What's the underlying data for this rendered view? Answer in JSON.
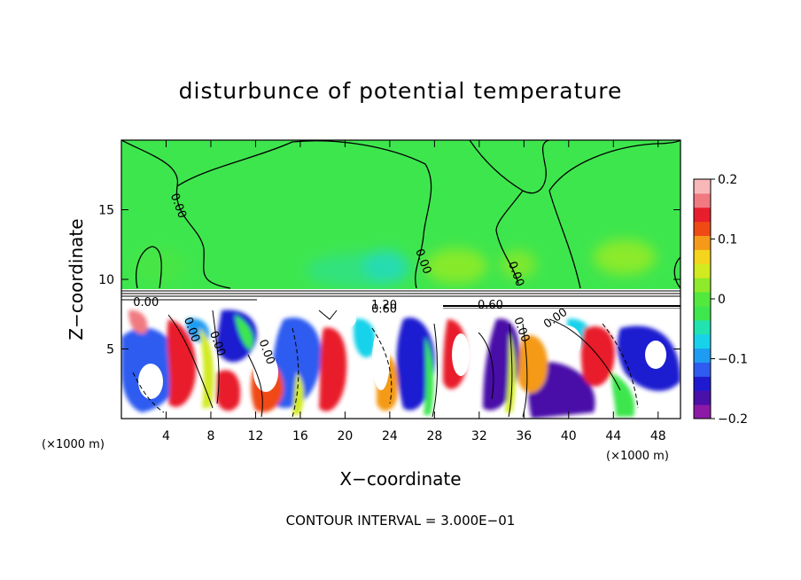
{
  "chart_data": {
    "type": "heatmap",
    "title": "disturbunce of potential temperature",
    "xlabel": "X−coordinate",
    "ylabel": "Z−coordinate",
    "x_unit": "(×1000 m)",
    "y_unit": "(×1000 m)",
    "xlim": [
      0,
      50
    ],
    "ylim": [
      0,
      20
    ],
    "x_ticks": [
      4,
      8,
      12,
      16,
      20,
      24,
      28,
      32,
      36,
      40,
      44,
      48
    ],
    "y_ticks": [
      5,
      10,
      15
    ],
    "colorbar": {
      "min": -0.2,
      "max": 0.2,
      "ticks": [
        {
          "value": 0.2,
          "label": "0.2"
        },
        {
          "value": 0.1,
          "label": "0.1"
        },
        {
          "value": 0.0,
          "label": "0"
        },
        {
          "value": -0.1,
          "label": "−0.1"
        },
        {
          "value": -0.2,
          "label": "−0.2"
        }
      ],
      "colors": [
        "#8c1aa6",
        "#4a10a8",
        "#1f1ad0",
        "#2e5cf0",
        "#1e9cf2",
        "#18d2ea",
        "#22e2b0",
        "#3ee64e",
        "#52e83e",
        "#8eea2a",
        "#d2ea20",
        "#f4d41c",
        "#f49a18",
        "#f04a14",
        "#e81e2c",
        "#f07a80",
        "#f8b8b8"
      ]
    },
    "upper_layer": {
      "z_range": [
        9,
        20
      ],
      "value_range": [
        -0.02,
        0.05
      ],
      "dominant_value": 0.0
    },
    "lower_layer": {
      "z_range": [
        0,
        8
      ],
      "value_range": [
        -0.2,
        0.2
      ]
    },
    "contour_interval": 0.3,
    "contour_labels": [
      {
        "x": 4.8,
        "z": 15.2,
        "text": "0.00"
      },
      {
        "x": 26.7,
        "z": 11.2,
        "text": "0.00"
      },
      {
        "x": 35.0,
        "z": 10.3,
        "text": "0.00"
      },
      {
        "x": 2.2,
        "z": 8.1,
        "text": "0.00"
      },
      {
        "x": 6.0,
        "z": 6.3,
        "text": "0.00"
      },
      {
        "x": 8.3,
        "z": 5.3,
        "text": "0.00"
      },
      {
        "x": 12.7,
        "z": 4.7,
        "text": "0.00"
      },
      {
        "x": 23.5,
        "z": 7.9,
        "text": "1.20"
      },
      {
        "x": 23.5,
        "z": 7.6,
        "text": "0.60"
      },
      {
        "x": 33.0,
        "z": 7.9,
        "text": "0.60"
      },
      {
        "x": 35.5,
        "z": 6.3,
        "text": "0.00"
      },
      {
        "x": 39.0,
        "z": 7.0,
        "text": "0.00"
      }
    ]
  },
  "footer": {
    "contour_interval_label": "CONTOUR INTERVAL = 3.000E−01"
  }
}
